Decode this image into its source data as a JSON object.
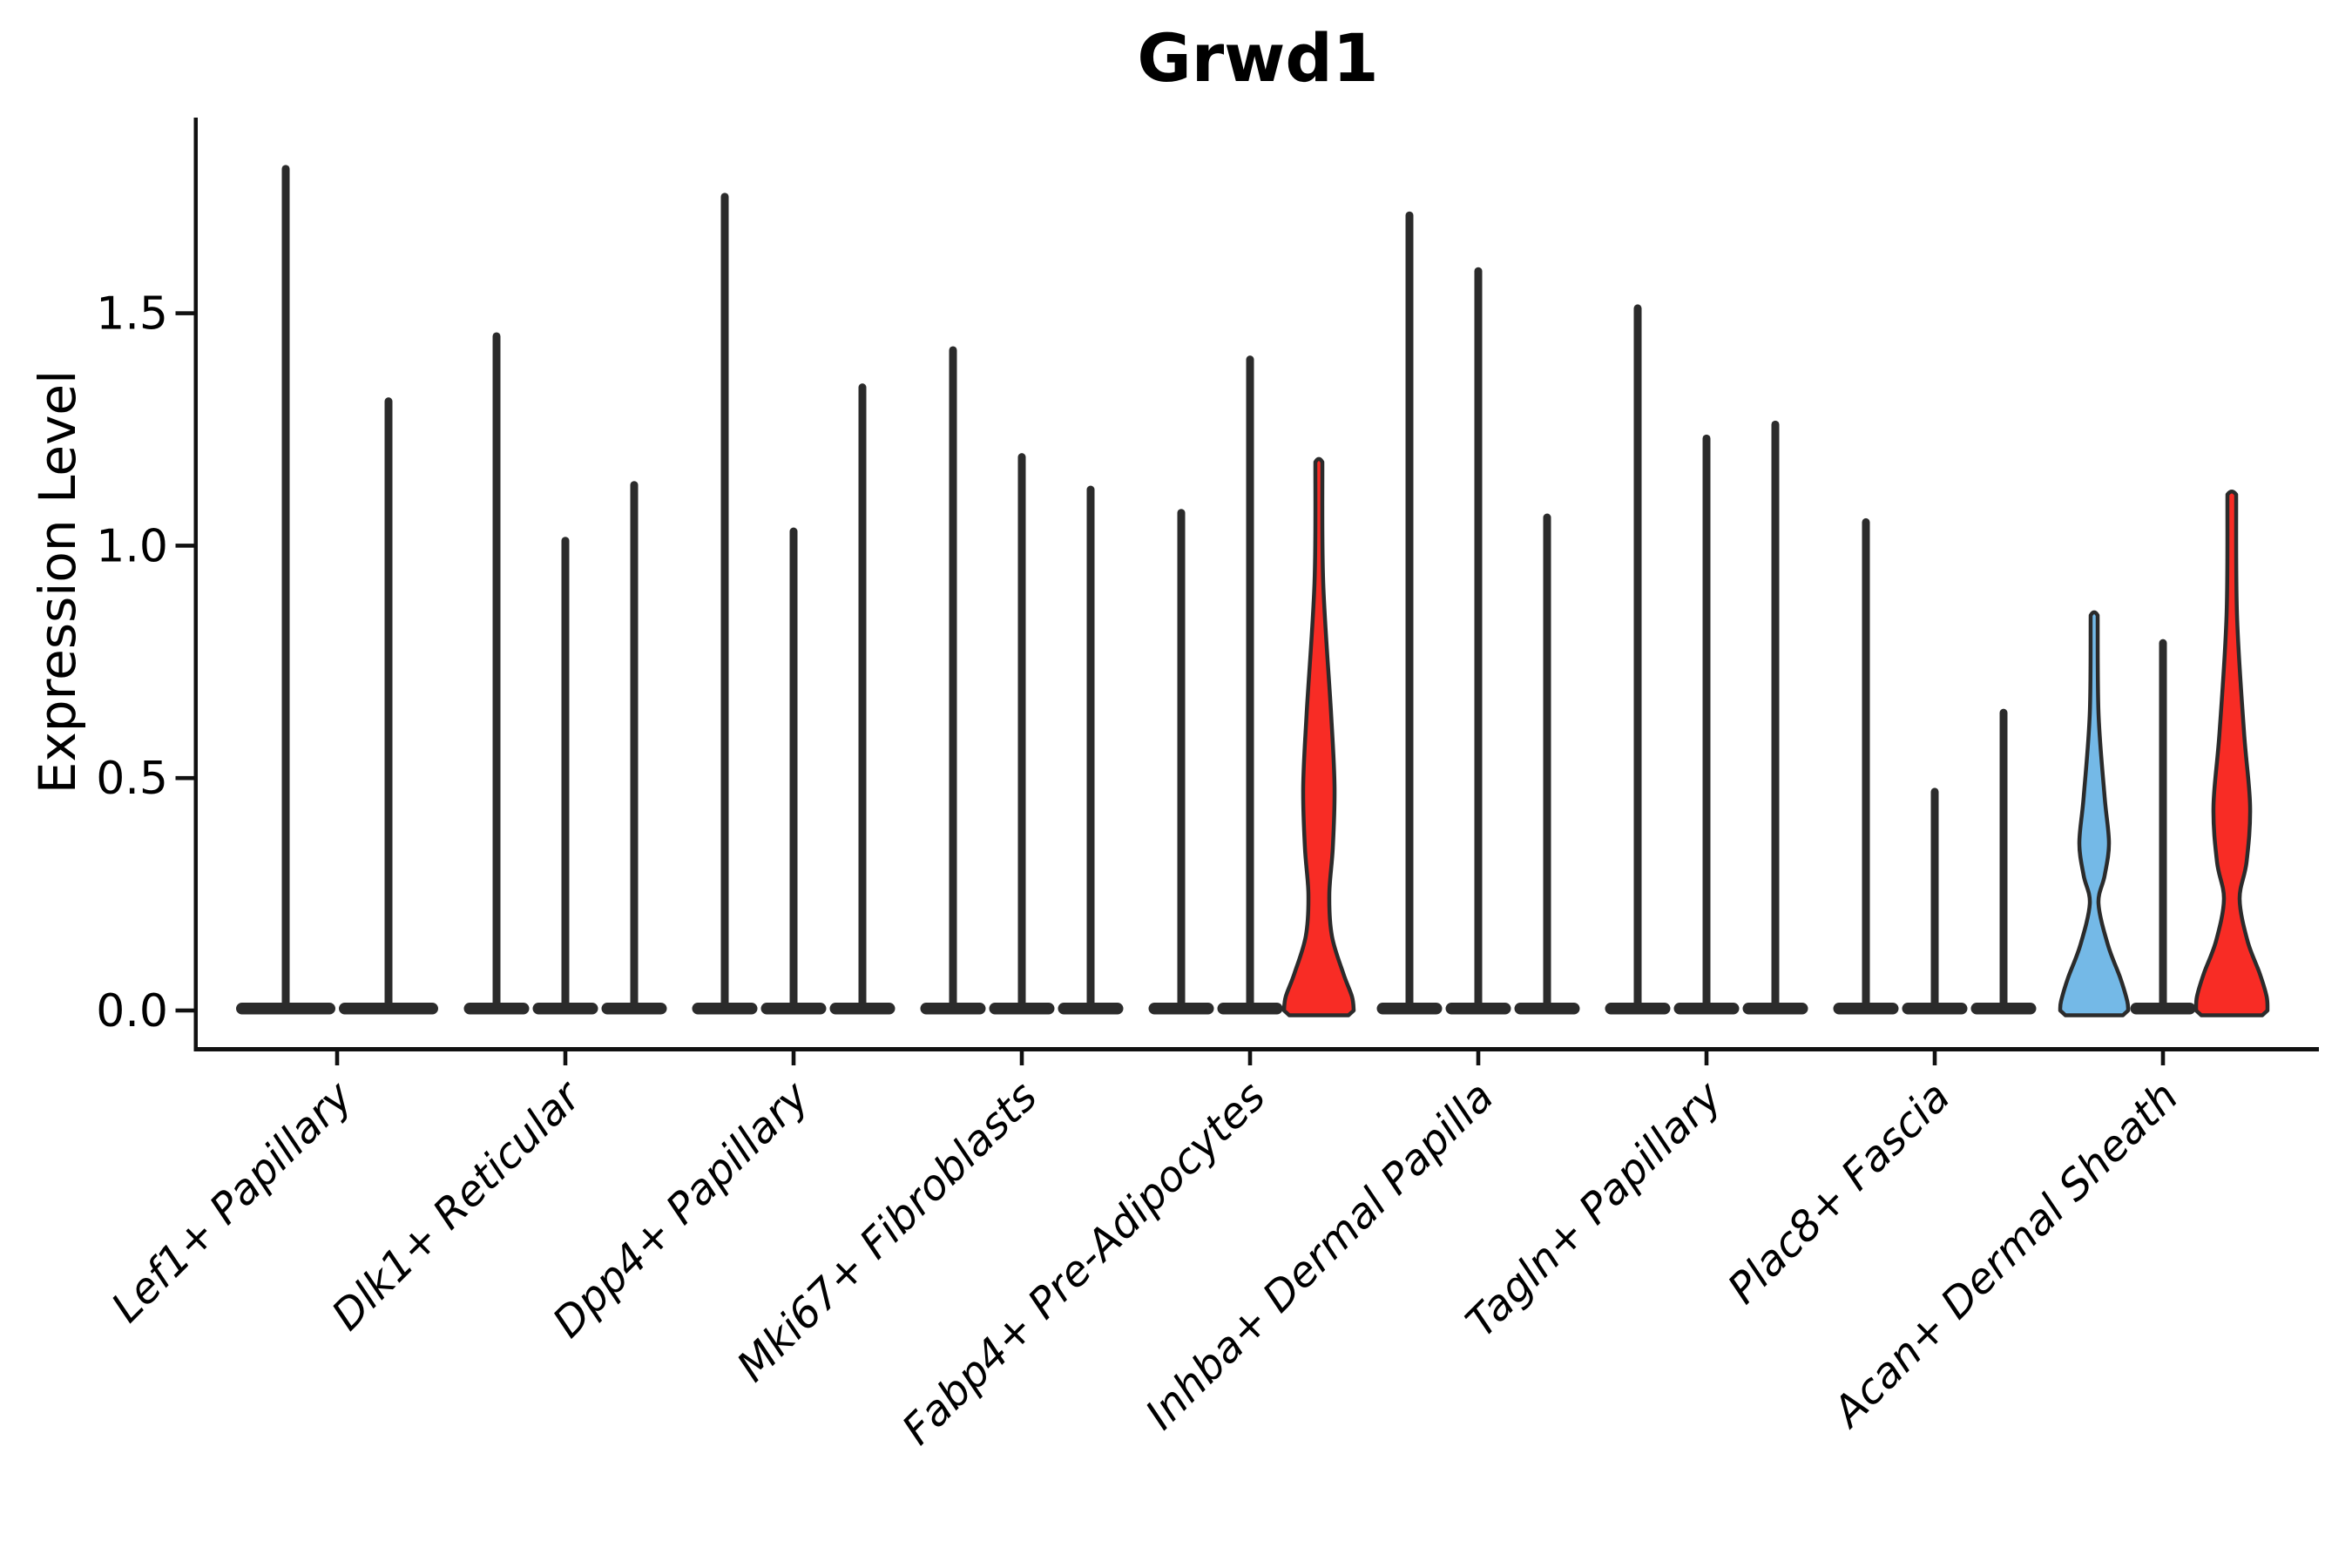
{
  "chart_data": {
    "type": "violin",
    "title": "Grwd1",
    "ylabel": "Expression Level",
    "xlabel": "",
    "ylim": [
      0,
      1.93
    ],
    "grid": false,
    "legend": "none",
    "yticks": [
      {
        "label": "0.0",
        "value": 0.0
      },
      {
        "label": "0.5",
        "value": 0.5
      },
      {
        "label": "1.0",
        "value": 1.0
      },
      {
        "label": "1.5",
        "value": 1.5
      }
    ],
    "categories": [
      "Lef1+ Papillary",
      "Dlk1+ Reticular",
      "Dpp4+ Papillary",
      "Mki67+ Fibroblasts",
      "Fabp4+ Pre-Adipocytes",
      "Inhba+ Dermal Papilla",
      "Tagln+ Papillary",
      "Plac8+ Fascia",
      "Acan+ Dermal Sheath"
    ],
    "violins": [
      {
        "category": "Lef1+ Papillary",
        "items": [
          {
            "max": 1.82,
            "fill": "none"
          },
          {
            "max": 1.32,
            "fill": "none"
          }
        ]
      },
      {
        "category": "Dlk1+ Reticular",
        "items": [
          {
            "max": 1.46,
            "fill": "none"
          },
          {
            "max": 1.02,
            "fill": "none"
          },
          {
            "max": 1.14,
            "fill": "none"
          }
        ]
      },
      {
        "category": "Dpp4+ Papillary",
        "items": [
          {
            "max": 1.76,
            "fill": "none"
          },
          {
            "max": 1.04,
            "fill": "none"
          },
          {
            "max": 1.35,
            "fill": "none"
          }
        ]
      },
      {
        "category": "Mki67+ Fibroblasts",
        "items": [
          {
            "max": 1.43,
            "fill": "none"
          },
          {
            "max": 1.2,
            "fill": "none"
          },
          {
            "max": 1.13,
            "fill": "none"
          }
        ]
      },
      {
        "category": "Fabp4+ Pre-Adipocytes",
        "items": [
          {
            "max": 1.08,
            "fill": "none"
          },
          {
            "max": 1.41,
            "fill": "none"
          },
          {
            "max": 1.18,
            "fill": "red",
            "profile": [
              [
                1.18,
                4
              ],
              [
                0.92,
                5
              ],
              [
                0.64,
                14
              ],
              [
                0.48,
                18
              ],
              [
                0.35,
                16
              ],
              [
                0.25,
                12
              ],
              [
                0.16,
                15
              ],
              [
                0.08,
                28
              ],
              [
                0.03,
                38
              ],
              [
                0,
                40
              ]
            ]
          }
        ]
      },
      {
        "category": "Inhba+ Dermal Papilla",
        "items": [
          {
            "max": 1.72,
            "fill": "none"
          },
          {
            "max": 1.6,
            "fill": "none"
          },
          {
            "max": 1.07,
            "fill": "none"
          }
        ]
      },
      {
        "category": "Tagln+ Papillary",
        "items": [
          {
            "max": 1.52,
            "fill": "none"
          },
          {
            "max": 1.24,
            "fill": "none"
          },
          {
            "max": 1.27,
            "fill": "none"
          }
        ]
      },
      {
        "category": "Plac8+ Fascia",
        "items": [
          {
            "max": 1.06,
            "fill": "none"
          },
          {
            "max": 0.48,
            "fill": "none"
          },
          {
            "max": 0.65,
            "fill": "none"
          }
        ]
      },
      {
        "category": "Acan+ Dermal Sheath",
        "items": [
          {
            "max": 0.85,
            "fill": "blue",
            "profile": [
              [
                0.85,
                4
              ],
              [
                0.64,
                5
              ],
              [
                0.46,
                12
              ],
              [
                0.36,
                17
              ],
              [
                0.29,
                12
              ],
              [
                0.23,
                5
              ],
              [
                0.14,
                16
              ],
              [
                0.07,
                30
              ],
              [
                0.02,
                38
              ],
              [
                0,
                39
              ]
            ]
          },
          {
            "max": 0.8,
            "fill": "none"
          },
          {
            "max": 1.11,
            "fill": "red",
            "profile": [
              [
                1.11,
                5
              ],
              [
                0.85,
                6
              ],
              [
                0.6,
                14
              ],
              [
                0.44,
                21
              ],
              [
                0.32,
                17
              ],
              [
                0.24,
                9
              ],
              [
                0.15,
                18
              ],
              [
                0.08,
                32
              ],
              [
                0.03,
                40
              ],
              [
                0,
                41
              ]
            ]
          }
        ]
      }
    ],
    "colors": {
      "red": "#f82c25",
      "blue": "#74b9e7",
      "violin_outline": "#2b2b2b",
      "axis": "#111111",
      "text": "#000000",
      "background": "#ffffff"
    }
  }
}
